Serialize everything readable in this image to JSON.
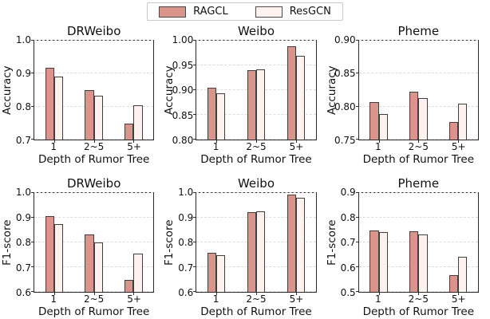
{
  "figure": {
    "legend": {
      "items": [
        {
          "label": "RAGCL",
          "color": "#db948c"
        },
        {
          "label": "ResGCN",
          "color": "#fdf2ee"
        }
      ]
    },
    "colors": {
      "ragcl": "#db948c",
      "resgcn": "#fdf2ee",
      "bar_edge": "#3f3f3f",
      "spine": "#2a2a2a",
      "grid": "#dcdcdc"
    }
  },
  "chart_data": [
    {
      "type": "bar",
      "title": "DRWeibo",
      "ylabel": "Accuracy",
      "xlabel": "Depth of Rumor Tree",
      "categories": [
        "1",
        "2~5",
        "5+"
      ],
      "ylim": [
        0.7,
        1.0
      ],
      "yticks": [
        1.0,
        0.9,
        0.8,
        0.7
      ],
      "ytick_labels": [
        "1.0",
        "0.9",
        "0.8",
        "0.7"
      ],
      "grid": true,
      "legend_position": "figure-top",
      "series": [
        {
          "name": "RAGCL",
          "values": [
            0.917,
            0.85,
            0.749
          ]
        },
        {
          "name": "ResGCN",
          "values": [
            0.891,
            0.832,
            0.805
          ]
        }
      ]
    },
    {
      "type": "bar",
      "title": "Weibo",
      "ylabel": "Accuracy",
      "xlabel": "Depth of Rumor Tree",
      "categories": [
        "1",
        "2~5",
        "5+"
      ],
      "ylim": [
        0.8,
        1.0
      ],
      "yticks": [
        1.0,
        0.95,
        0.9,
        0.85,
        0.8
      ],
      "ytick_labels": [
        "1.00",
        "0.95",
        "0.90",
        "0.85",
        "0.80"
      ],
      "grid": true,
      "legend_position": "figure-top",
      "series": [
        {
          "name": "RAGCL",
          "values": [
            0.905,
            0.94,
            0.989
          ]
        },
        {
          "name": "ResGCN",
          "values": [
            0.893,
            0.942,
            0.97
          ]
        }
      ]
    },
    {
      "type": "bar",
      "title": "Pheme",
      "ylabel": "Accuracy",
      "xlabel": "Depth of Rumor Tree",
      "categories": [
        "1",
        "2~5",
        "5+"
      ],
      "ylim": [
        0.75,
        0.9
      ],
      "yticks": [
        0.9,
        0.85,
        0.8,
        0.75
      ],
      "ytick_labels": [
        "0.90",
        "0.85",
        "0.80",
        "0.75"
      ],
      "grid": true,
      "legend_position": "figure-top",
      "series": [
        {
          "name": "RAGCL",
          "values": [
            0.807,
            0.823,
            0.777
          ]
        },
        {
          "name": "ResGCN",
          "values": [
            0.789,
            0.813,
            0.804
          ]
        }
      ]
    },
    {
      "type": "bar",
      "title": "DRWeibo",
      "ylabel": "F1-score",
      "xlabel": "Depth of Rumor Tree",
      "categories": [
        "1",
        "2~5",
        "5+"
      ],
      "ylim": [
        0.6,
        1.0
      ],
      "yticks": [
        1.0,
        0.9,
        0.8,
        0.7,
        0.6
      ],
      "ytick_labels": [
        "1.0",
        "0.9",
        "0.8",
        "0.7",
        "0.6"
      ],
      "grid": true,
      "legend_position": "figure-top",
      "series": [
        {
          "name": "RAGCL",
          "values": [
            0.907,
            0.833,
            0.65
          ]
        },
        {
          "name": "ResGCN",
          "values": [
            0.875,
            0.801,
            0.756
          ]
        }
      ]
    },
    {
      "type": "bar",
      "title": "Weibo",
      "ylabel": "F1-score",
      "xlabel": "Depth of Rumor Tree",
      "categories": [
        "1",
        "2~5",
        "5+"
      ],
      "ylim": [
        0.6,
        1.0
      ],
      "yticks": [
        1.0,
        0.9,
        0.8,
        0.7,
        0.6
      ],
      "ytick_labels": [
        "1.0",
        "0.9",
        "0.8",
        "0.7",
        "0.6"
      ],
      "grid": true,
      "legend_position": "figure-top",
      "series": [
        {
          "name": "RAGCL",
          "values": [
            0.757,
            0.922,
            0.993
          ]
        },
        {
          "name": "ResGCN",
          "values": [
            0.75,
            0.925,
            0.982
          ]
        }
      ]
    },
    {
      "type": "bar",
      "title": "Pheme",
      "ylabel": "F1-score",
      "xlabel": "Depth of Rumor Tree",
      "categories": [
        "1",
        "2~5",
        "5+"
      ],
      "ylim": [
        0.5,
        0.9
      ],
      "yticks": [
        0.9,
        0.8,
        0.7,
        0.6,
        0.5
      ],
      "ytick_labels": [
        "0.9",
        "0.8",
        "0.7",
        "0.6",
        "0.5"
      ],
      "grid": true,
      "legend_position": "figure-top",
      "series": [
        {
          "name": "RAGCL",
          "values": [
            0.75,
            0.744,
            0.568
          ]
        },
        {
          "name": "ResGCN",
          "values": [
            0.743,
            0.733,
            0.641
          ]
        }
      ]
    }
  ]
}
